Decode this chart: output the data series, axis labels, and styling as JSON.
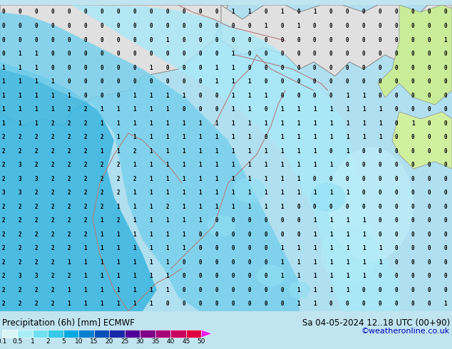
{
  "title_left": "Precipitation (6h) [mm] ECMWF",
  "title_right": "Sa 04-05-2024 12..18 UTC (00+90)",
  "credit": "©weatheronline.co.uk",
  "colorbar_labels": [
    "0.1",
    "0.5",
    "1",
    "2",
    "5",
    "10",
    "15",
    "20",
    "25",
    "30",
    "35",
    "40",
    "45",
    "50"
  ],
  "colorbar_colors": [
    "#d8f5f5",
    "#a8eef5",
    "#70e0f0",
    "#38c8e8",
    "#08a8e0",
    "#0880d0",
    "#0850b8",
    "#1828a8",
    "#500098",
    "#800088",
    "#a80078",
    "#c80060",
    "#e00040",
    "#e820e8"
  ],
  "bg_top_color": "#e8e8e8",
  "ocean_color": "#b8e8f8",
  "precip_light": "#90ddf0",
  "precip_medium": "#50c8e8",
  "precip_heavy": "#20a0d8",
  "land_green": "#c8eca0",
  "border_color": "#a08080",
  "text_color": "#000000",
  "credit_color": "#0000bb",
  "bottom_bg": "#c0e4f0",
  "fig_width": 6.34,
  "fig_height": 4.9,
  "dpi": 100,
  "map_numbers": {
    "grid_cols": 28,
    "grid_rows": 22,
    "values": [
      [
        0,
        0,
        0,
        0,
        0,
        0,
        0,
        0,
        0,
        0,
        0,
        0,
        0,
        0,
        1,
        1,
        0,
        1,
        0,
        1,
        0,
        0,
        0,
        0,
        0,
        0,
        0,
        0
      ],
      [
        0,
        0,
        0,
        0,
        0,
        0,
        0,
        0,
        0,
        0,
        0,
        0,
        0,
        0,
        0,
        0,
        1,
        0,
        1,
        0,
        0,
        0,
        0,
        0,
        0,
        0,
        0,
        0
      ],
      [
        0,
        0,
        0,
        0,
        0,
        0,
        0,
        0,
        0,
        0,
        1,
        0,
        0,
        0,
        0,
        0,
        0,
        0,
        0,
        0,
        0,
        0,
        0,
        0,
        0,
        0,
        0,
        1
      ],
      [
        0,
        1,
        1,
        0,
        0,
        0,
        0,
        0,
        0,
        0,
        0,
        0,
        0,
        0,
        1,
        0,
        0,
        0,
        0,
        0,
        0,
        0,
        0,
        0,
        0,
        0,
        0,
        0
      ],
      [
        1,
        1,
        1,
        0,
        0,
        0,
        0,
        0,
        0,
        1,
        0,
        0,
        0,
        1,
        1,
        0,
        0,
        0,
        0,
        0,
        0,
        0,
        0,
        0,
        0,
        0,
        0,
        0
      ],
      [
        1,
        1,
        1,
        1,
        0,
        0,
        0,
        0,
        0,
        0,
        0,
        0,
        0,
        1,
        1,
        1,
        0,
        0,
        0,
        0,
        0,
        0,
        0,
        0,
        0,
        0,
        0,
        0
      ],
      [
        1,
        1,
        1,
        1,
        1,
        0,
        0,
        0,
        1,
        1,
        1,
        1,
        0,
        0,
        1,
        1,
        1,
        0,
        0,
        0,
        0,
        1,
        1,
        0,
        0,
        0,
        0,
        0
      ],
      [
        1,
        1,
        1,
        1,
        2,
        2,
        1,
        1,
        1,
        1,
        1,
        0,
        0,
        0,
        1,
        1,
        0,
        1,
        1,
        1,
        1,
        1,
        1,
        1,
        0,
        0,
        0,
        0
      ],
      [
        1,
        1,
        1,
        2,
        2,
        2,
        1,
        1,
        1,
        1,
        1,
        1,
        1,
        1,
        1,
        1,
        1,
        1,
        1,
        1,
        1,
        1,
        1,
        1,
        0,
        1,
        0,
        0
      ],
      [
        2,
        2,
        2,
        2,
        2,
        2,
        2,
        1,
        1,
        1,
        1,
        1,
        1,
        1,
        1,
        1,
        0,
        1,
        1,
        1,
        1,
        1,
        1,
        1,
        0,
        0,
        0,
        0
      ],
      [
        2,
        2,
        2,
        2,
        2,
        2,
        1,
        1,
        2,
        1,
        1,
        1,
        1,
        1,
        1,
        1,
        1,
        1,
        1,
        1,
        0,
        1,
        0,
        0,
        0,
        0,
        0,
        0
      ],
      [
        2,
        3,
        2,
        2,
        2,
        2,
        2,
        2,
        1,
        1,
        1,
        1,
        1,
        1,
        1,
        1,
        1,
        1,
        1,
        1,
        1,
        0,
        0,
        0,
        0,
        0,
        0,
        0
      ],
      [
        2,
        3,
        3,
        2,
        2,
        2,
        2,
        2,
        2,
        1,
        1,
        1,
        1,
        1,
        1,
        1,
        1,
        1,
        1,
        0,
        0,
        0,
        0,
        0,
        0,
        0,
        0,
        0
      ],
      [
        3,
        3,
        2,
        2,
        2,
        2,
        2,
        2,
        1,
        1,
        1,
        1,
        1,
        1,
        1,
        1,
        1,
        1,
        1,
        1,
        1,
        1,
        0,
        0,
        0,
        0,
        0,
        0
      ],
      [
        2,
        2,
        2,
        2,
        2,
        2,
        2,
        1,
        1,
        1,
        2,
        1,
        1,
        1,
        1,
        1,
        1,
        1,
        0,
        0,
        0,
        0,
        0,
        0,
        0,
        0,
        0,
        0
      ],
      [
        2,
        2,
        2,
        2,
        2,
        2,
        1,
        2,
        1,
        1,
        1,
        1,
        1,
        0,
        0,
        0,
        0,
        0,
        0,
        1,
        1,
        1,
        1,
        0,
        0,
        0,
        0,
        0
      ],
      [
        2,
        2,
        2,
        2,
        2,
        2,
        1,
        1,
        1,
        1,
        1,
        1,
        0,
        0,
        0,
        0,
        0,
        0,
        0,
        1,
        1,
        1,
        1,
        0,
        0,
        0,
        0,
        0
      ],
      [
        2,
        2,
        2,
        2,
        2,
        1,
        1,
        1,
        1,
        1,
        1,
        1,
        0,
        0,
        0,
        0,
        0,
        1,
        1,
        1,
        1,
        1,
        1,
        1,
        0,
        0,
        0,
        0
      ],
      [
        2,
        2,
        2,
        2,
        1,
        1,
        1,
        1,
        1,
        1,
        1,
        0,
        0,
        0,
        0,
        0,
        0,
        1,
        1,
        1,
        1,
        1,
        1,
        1,
        0,
        0,
        0,
        0
      ],
      [
        2,
        3,
        3,
        2,
        2,
        1,
        1,
        1,
        1,
        1,
        1,
        0,
        0,
        0,
        0,
        0,
        0,
        1,
        1,
        1,
        1,
        1,
        1,
        0,
        0,
        0,
        0,
        0
      ],
      [
        2,
        2,
        2,
        2,
        1,
        1,
        1,
        1,
        1,
        1,
        1,
        0,
        0,
        0,
        0,
        0,
        0,
        0,
        1,
        1,
        1,
        1,
        0,
        0,
        0,
        0,
        0,
        0
      ],
      [
        2,
        2,
        2,
        2,
        1,
        1,
        1,
        1,
        1,
        1,
        0,
        0,
        0,
        0,
        0,
        0,
        0,
        0,
        1,
        1,
        0,
        0,
        0,
        0,
        0,
        0,
        0,
        1
      ]
    ]
  }
}
